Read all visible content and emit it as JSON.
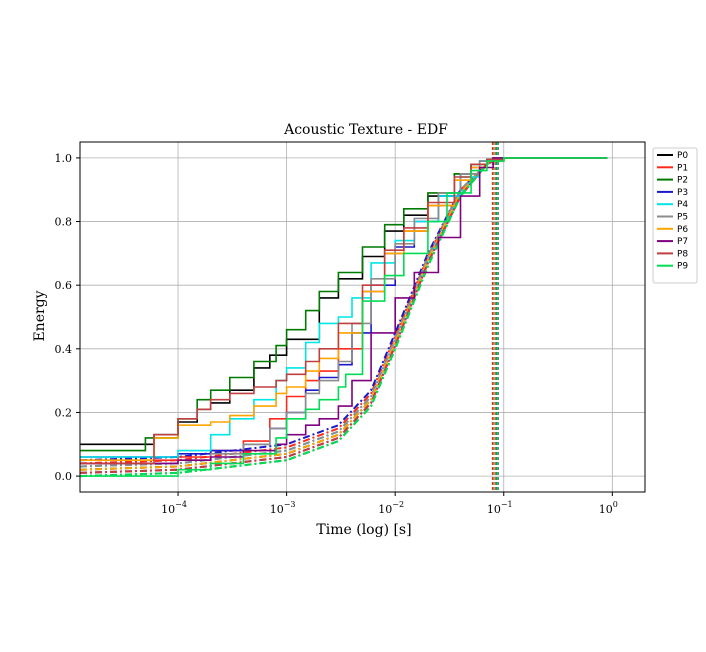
{
  "chart_data": {
    "type": "line",
    "title": "Acoustic Texture - EDF",
    "xlabel": "Time (log) [s]",
    "ylabel": "Energy",
    "xscale": "log",
    "xlim": [
      1.25e-05,
      2
    ],
    "ylim": [
      -0.05,
      1.05
    ],
    "xticks": [
      {
        "value": 0.0001,
        "base": "10",
        "exp": "−4"
      },
      {
        "value": 0.001,
        "base": "10",
        "exp": "−3"
      },
      {
        "value": 0.01,
        "base": "10",
        "exp": "−2"
      },
      {
        "value": 0.1,
        "base": "10",
        "exp": "−1"
      },
      {
        "value": 1,
        "base": "10",
        "exp": "0"
      }
    ],
    "yticks": [
      {
        "value": 0.0,
        "label": "0.0"
      },
      {
        "value": 0.2,
        "label": "0.2"
      },
      {
        "value": 0.4,
        "label": "0.4"
      },
      {
        "value": 0.6,
        "label": "0.6"
      },
      {
        "value": 0.8,
        "label": "0.8"
      },
      {
        "value": 1.0,
        "label": "1.0"
      }
    ],
    "grid": true,
    "legend_position": "outside-right",
    "series": [
      {
        "name": "P0",
        "color": "#000000",
        "x": [
          1.25e-05,
          4e-05,
          6e-05,
          0.0001,
          0.00015,
          0.0002,
          0.0003,
          0.0005,
          0.0007,
          0.001,
          0.002,
          0.003,
          0.005,
          0.008,
          0.012,
          0.02,
          0.035,
          0.05,
          0.07,
          0.1,
          0.3,
          0.9
        ],
        "y": [
          0.1,
          0.1,
          0.13,
          0.17,
          0.21,
          0.23,
          0.27,
          0.34,
          0.38,
          0.43,
          0.56,
          0.62,
          0.69,
          0.77,
          0.82,
          0.88,
          0.95,
          0.98,
          0.995,
          1.0,
          1.0,
          1.0
        ],
        "cumulative": [
          {
            "x": 1.25e-05,
            "y": 0.02
          },
          {
            "x": 0.0001,
            "y": 0.03
          },
          {
            "x": 0.001,
            "y": 0.07
          },
          {
            "x": 0.003,
            "y": 0.13
          },
          {
            "x": 0.006,
            "y": 0.24
          },
          {
            "x": 0.01,
            "y": 0.42
          },
          {
            "x": 0.02,
            "y": 0.68
          },
          {
            "x": 0.04,
            "y": 0.89
          },
          {
            "x": 0.07,
            "y": 0.98
          },
          {
            "x": 0.09,
            "y": 1.0
          }
        ],
        "vline": 0.088
      },
      {
        "name": "P1",
        "color": "#ff2a1a",
        "x": [
          1.25e-05,
          5e-05,
          0.0001,
          0.0002,
          0.0004,
          0.0007,
          0.001,
          0.0015,
          0.002,
          0.003,
          0.005,
          0.008,
          0.012,
          0.02,
          0.035,
          0.05,
          0.07,
          0.1,
          0.3,
          0.9
        ],
        "y": [
          0.05,
          0.05,
          0.06,
          0.08,
          0.11,
          0.18,
          0.25,
          0.3,
          0.33,
          0.4,
          0.58,
          0.7,
          0.77,
          0.85,
          0.93,
          0.97,
          0.99,
          1.0,
          1.0,
          1.0
        ],
        "cumulative": [
          {
            "x": 1.25e-05,
            "y": 0.04
          },
          {
            "x": 0.0001,
            "y": 0.05
          },
          {
            "x": 0.001,
            "y": 0.09
          },
          {
            "x": 0.003,
            "y": 0.15
          },
          {
            "x": 0.006,
            "y": 0.26
          },
          {
            "x": 0.01,
            "y": 0.44
          },
          {
            "x": 0.02,
            "y": 0.69
          },
          {
            "x": 0.04,
            "y": 0.9
          },
          {
            "x": 0.07,
            "y": 0.98
          },
          {
            "x": 0.09,
            "y": 1.0
          }
        ],
        "vline": 0.082
      },
      {
        "name": "P2",
        "color": "#007a00",
        "x": [
          1.25e-05,
          3e-05,
          5e-05,
          0.0001,
          0.00015,
          0.0002,
          0.0003,
          0.0005,
          0.0008,
          0.001,
          0.0015,
          0.002,
          0.003,
          0.005,
          0.008,
          0.012,
          0.02,
          0.035,
          0.05,
          0.07,
          0.1,
          0.3,
          0.9
        ],
        "y": [
          0.08,
          0.08,
          0.12,
          0.18,
          0.24,
          0.27,
          0.31,
          0.36,
          0.41,
          0.46,
          0.52,
          0.58,
          0.64,
          0.72,
          0.79,
          0.84,
          0.89,
          0.95,
          0.98,
          0.995,
          1.0,
          1.0,
          1.0
        ],
        "cumulative": [
          {
            "x": 1.25e-05,
            "y": 0.0
          },
          {
            "x": 0.0001,
            "y": 0.01
          },
          {
            "x": 0.001,
            "y": 0.05
          },
          {
            "x": 0.003,
            "y": 0.11
          },
          {
            "x": 0.006,
            "y": 0.22
          },
          {
            "x": 0.01,
            "y": 0.4
          },
          {
            "x": 0.02,
            "y": 0.66
          },
          {
            "x": 0.04,
            "y": 0.88
          },
          {
            "x": 0.07,
            "y": 0.98
          },
          {
            "x": 0.09,
            "y": 1.0
          }
        ],
        "vline": 0.08
      },
      {
        "name": "P3",
        "color": "#1a1acc",
        "x": [
          1.25e-05,
          5e-05,
          0.0001,
          0.0002,
          0.0004,
          0.0007,
          0.001,
          0.0015,
          0.002,
          0.003,
          0.004,
          0.006,
          0.01,
          0.015,
          0.025,
          0.04,
          0.06,
          0.08,
          0.1,
          0.3,
          0.9
        ],
        "y": [
          0.06,
          0.06,
          0.07,
          0.08,
          0.1,
          0.15,
          0.2,
          0.27,
          0.31,
          0.35,
          0.45,
          0.6,
          0.72,
          0.8,
          0.88,
          0.95,
          0.99,
          1.0,
          1.0,
          1.0,
          1.0
        ],
        "cumulative": [
          {
            "x": 1.25e-05,
            "y": 0.05
          },
          {
            "x": 0.0001,
            "y": 0.06
          },
          {
            "x": 0.001,
            "y": 0.1
          },
          {
            "x": 0.003,
            "y": 0.16
          },
          {
            "x": 0.006,
            "y": 0.27
          },
          {
            "x": 0.01,
            "y": 0.45
          },
          {
            "x": 0.02,
            "y": 0.7
          },
          {
            "x": 0.04,
            "y": 0.9
          },
          {
            "x": 0.07,
            "y": 0.98
          },
          {
            "x": 0.09,
            "y": 1.0
          }
        ],
        "vline": 0.085
      },
      {
        "name": "P4",
        "color": "#00e5e5",
        "x": [
          1.25e-05,
          5e-05,
          0.0001,
          0.0002,
          0.0003,
          0.0005,
          0.0008,
          0.001,
          0.0015,
          0.002,
          0.003,
          0.004,
          0.006,
          0.01,
          0.015,
          0.025,
          0.04,
          0.06,
          0.08,
          0.1,
          0.3,
          0.9
        ],
        "y": [
          0.06,
          0.06,
          0.08,
          0.13,
          0.18,
          0.24,
          0.3,
          0.34,
          0.42,
          0.48,
          0.5,
          0.56,
          0.67,
          0.74,
          0.8,
          0.88,
          0.94,
          0.99,
          1.0,
          1.0,
          1.0,
          1.0
        ],
        "cumulative": [
          {
            "x": 1.25e-05,
            "y": 0.03
          },
          {
            "x": 0.0001,
            "y": 0.04
          },
          {
            "x": 0.001,
            "y": 0.08
          },
          {
            "x": 0.003,
            "y": 0.14
          },
          {
            "x": 0.006,
            "y": 0.25
          },
          {
            "x": 0.01,
            "y": 0.43
          },
          {
            "x": 0.02,
            "y": 0.68
          },
          {
            "x": 0.04,
            "y": 0.89
          },
          {
            "x": 0.07,
            "y": 0.98
          },
          {
            "x": 0.09,
            "y": 1.0
          }
        ],
        "vline": 0.083
      },
      {
        "name": "P5",
        "color": "#8c8c8c",
        "x": [
          1.25e-05,
          5e-05,
          0.0001,
          0.0002,
          0.0004,
          0.0007,
          0.001,
          0.0015,
          0.002,
          0.003,
          0.004,
          0.006,
          0.01,
          0.015,
          0.025,
          0.04,
          0.06,
          0.08,
          0.1,
          0.3,
          0.9
        ],
        "y": [
          0.04,
          0.04,
          0.05,
          0.07,
          0.1,
          0.15,
          0.2,
          0.26,
          0.3,
          0.36,
          0.48,
          0.62,
          0.73,
          0.81,
          0.89,
          0.95,
          0.99,
          1.0,
          1.0,
          1.0,
          1.0
        ],
        "cumulative": [
          {
            "x": 1.25e-05,
            "y": 0.03
          },
          {
            "x": 0.0001,
            "y": 0.04
          },
          {
            "x": 0.001,
            "y": 0.08
          },
          {
            "x": 0.003,
            "y": 0.14
          },
          {
            "x": 0.006,
            "y": 0.25
          },
          {
            "x": 0.01,
            "y": 0.43
          },
          {
            "x": 0.02,
            "y": 0.69
          },
          {
            "x": 0.04,
            "y": 0.9
          },
          {
            "x": 0.07,
            "y": 0.98
          },
          {
            "x": 0.09,
            "y": 1.0
          }
        ],
        "vline": 0.084
      },
      {
        "name": "P6",
        "color": "#ffa500",
        "x": [
          1.25e-05,
          4e-05,
          6e-05,
          0.0001,
          0.0002,
          0.0003,
          0.0005,
          0.0008,
          0.001,
          0.0015,
          0.002,
          0.003,
          0.005,
          0.008,
          0.012,
          0.02,
          0.035,
          0.05,
          0.07,
          0.1,
          0.3,
          0.9
        ],
        "y": [
          0.05,
          0.05,
          0.12,
          0.16,
          0.17,
          0.19,
          0.22,
          0.26,
          0.28,
          0.33,
          0.37,
          0.45,
          0.58,
          0.7,
          0.77,
          0.85,
          0.93,
          0.97,
          0.99,
          1.0,
          1.0,
          1.0
        ],
        "cumulative": [
          {
            "x": 1.25e-05,
            "y": 0.02
          },
          {
            "x": 0.0001,
            "y": 0.03
          },
          {
            "x": 0.001,
            "y": 0.07
          },
          {
            "x": 0.003,
            "y": 0.13
          },
          {
            "x": 0.006,
            "y": 0.24
          },
          {
            "x": 0.01,
            "y": 0.42
          },
          {
            "x": 0.02,
            "y": 0.68
          },
          {
            "x": 0.04,
            "y": 0.89
          },
          {
            "x": 0.07,
            "y": 0.98
          },
          {
            "x": 0.09,
            "y": 1.0
          }
        ],
        "vline": 0.081
      },
      {
        "name": "P7",
        "color": "#800080",
        "x": [
          1.25e-05,
          5e-05,
          0.0001,
          0.0002,
          0.0004,
          0.0008,
          0.001,
          0.0015,
          0.002,
          0.003,
          0.004,
          0.006,
          0.01,
          0.015,
          0.025,
          0.04,
          0.06,
          0.08,
          0.1,
          0.3,
          0.9
        ],
        "y": [
          0.04,
          0.04,
          0.05,
          0.06,
          0.08,
          0.1,
          0.13,
          0.16,
          0.18,
          0.22,
          0.3,
          0.45,
          0.56,
          0.64,
          0.75,
          0.88,
          0.97,
          1.0,
          1.0,
          1.0,
          1.0
        ],
        "cumulative": [
          {
            "x": 1.25e-05,
            "y": 0.01
          },
          {
            "x": 0.0001,
            "y": 0.02
          },
          {
            "x": 0.001,
            "y": 0.06
          },
          {
            "x": 0.003,
            "y": 0.12
          },
          {
            "x": 0.006,
            "y": 0.23
          },
          {
            "x": 0.01,
            "y": 0.41
          },
          {
            "x": 0.02,
            "y": 0.67
          },
          {
            "x": 0.04,
            "y": 0.88
          },
          {
            "x": 0.07,
            "y": 0.98
          },
          {
            "x": 0.09,
            "y": 1.0
          }
        ],
        "vline": 0.086
      },
      {
        "name": "P8",
        "color": "#c04040",
        "x": [
          1.25e-05,
          4e-05,
          6e-05,
          0.0001,
          0.00015,
          0.0002,
          0.0003,
          0.0005,
          0.0008,
          0.001,
          0.0015,
          0.002,
          0.003,
          0.005,
          0.008,
          0.012,
          0.02,
          0.035,
          0.05,
          0.07,
          0.1,
          0.3,
          0.9
        ],
        "y": [
          0.04,
          0.04,
          0.13,
          0.18,
          0.21,
          0.24,
          0.26,
          0.28,
          0.3,
          0.32,
          0.36,
          0.4,
          0.48,
          0.6,
          0.71,
          0.78,
          0.86,
          0.94,
          0.98,
          0.995,
          1.0,
          1.0,
          1.0
        ],
        "cumulative": [
          {
            "x": 1.25e-05,
            "y": 0.01
          },
          {
            "x": 0.0001,
            "y": 0.02
          },
          {
            "x": 0.001,
            "y": 0.06
          },
          {
            "x": 0.003,
            "y": 0.12
          },
          {
            "x": 0.006,
            "y": 0.23
          },
          {
            "x": 0.01,
            "y": 0.41
          },
          {
            "x": 0.02,
            "y": 0.67
          },
          {
            "x": 0.04,
            "y": 0.88
          },
          {
            "x": 0.07,
            "y": 0.98
          },
          {
            "x": 0.09,
            "y": 1.0
          }
        ],
        "vline": 0.079
      },
      {
        "name": "P9",
        "color": "#00dd55",
        "x": [
          1.25e-05,
          5e-05,
          0.0001,
          0.0002,
          0.0004,
          0.0008,
          0.001,
          0.0015,
          0.002,
          0.003,
          0.0035,
          0.005,
          0.008,
          0.012,
          0.02,
          0.03,
          0.05,
          0.07,
          0.1,
          0.3,
          0.9
        ],
        "y": [
          0.0,
          0.0,
          0.02,
          0.04,
          0.07,
          0.12,
          0.18,
          0.21,
          0.24,
          0.28,
          0.32,
          0.55,
          0.63,
          0.7,
          0.8,
          0.89,
          0.96,
          0.99,
          1.0,
          1.0,
          1.0
        ],
        "cumulative": [
          {
            "x": 1.25e-05,
            "y": 0.0
          },
          {
            "x": 0.0001,
            "y": 0.01
          },
          {
            "x": 0.001,
            "y": 0.05
          },
          {
            "x": 0.003,
            "y": 0.11
          },
          {
            "x": 0.006,
            "y": 0.22
          },
          {
            "x": 0.01,
            "y": 0.4
          },
          {
            "x": 0.02,
            "y": 0.66
          },
          {
            "x": 0.04,
            "y": 0.88
          },
          {
            "x": 0.07,
            "y": 0.98
          },
          {
            "x": 0.09,
            "y": 1.0
          }
        ],
        "vline": 0.087
      }
    ]
  }
}
